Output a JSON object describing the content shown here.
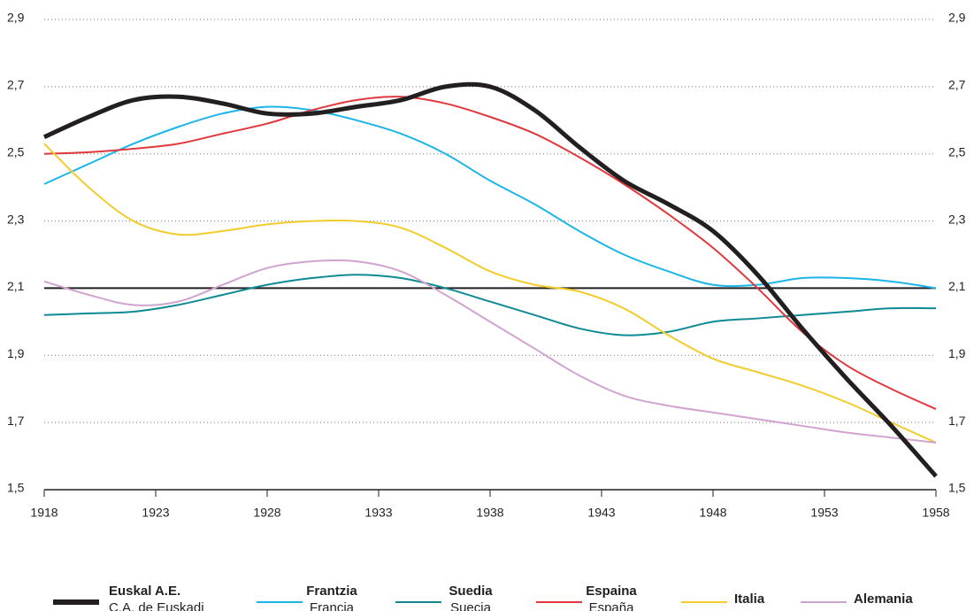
{
  "chart_data": {
    "type": "line",
    "x": [
      1918,
      1920,
      1922,
      1924,
      1926,
      1928,
      1930,
      1932,
      1934,
      1936,
      1938,
      1940,
      1942,
      1944,
      1946,
      1948,
      1950,
      1952,
      1954,
      1956,
      1958
    ],
    "xlim": [
      1918,
      1958
    ],
    "xticks": [
      1918,
      1923,
      1928,
      1933,
      1938,
      1943,
      1948,
      1953,
      1958
    ],
    "ylim": [
      1.5,
      2.9
    ],
    "yticks": [
      {
        "value": 1.5,
        "label": "1,5"
      },
      {
        "value": 1.7,
        "label": "1,7"
      },
      {
        "value": 1.9,
        "label": "1,9"
      },
      {
        "value": 2.1,
        "label": "2,1"
      },
      {
        "value": 2.3,
        "label": "2,3"
      },
      {
        "value": 2.5,
        "label": "2,5"
      },
      {
        "value": 2.7,
        "label": "2,7"
      },
      {
        "value": 2.9,
        "label": "2,9"
      }
    ],
    "grid": true,
    "hline": 2.1,
    "series": [
      {
        "name": "Euskal A.E.",
        "subname": "C.A. de Euskadi",
        "color": "#231f20",
        "values": [
          2.55,
          2.61,
          2.66,
          2.67,
          2.65,
          2.62,
          2.62,
          2.64,
          2.66,
          2.7,
          2.7,
          2.63,
          2.52,
          2.42,
          2.35,
          2.27,
          2.14,
          1.98,
          1.83,
          1.69,
          1.54
        ]
      },
      {
        "name": "Frantzia",
        "subname": "Francia",
        "color": "#1bb5e8",
        "values": [
          2.41,
          2.47,
          2.53,
          2.58,
          2.62,
          2.64,
          2.63,
          2.6,
          2.56,
          2.5,
          2.42,
          2.35,
          2.27,
          2.2,
          2.15,
          2.11,
          2.11,
          2.13,
          2.13,
          2.12,
          2.1
        ]
      },
      {
        "name": "Suedia",
        "subname": "Suecia",
        "color": "#0f8a94",
        "values": [
          2.02,
          2.025,
          2.03,
          2.05,
          2.08,
          2.11,
          2.13,
          2.14,
          2.13,
          2.1,
          2.06,
          2.02,
          1.98,
          1.96,
          1.97,
          2.0,
          2.01,
          2.02,
          2.03,
          2.04,
          2.04
        ]
      },
      {
        "name": "Espaina",
        "subname": "España",
        "color": "#e0383c",
        "values": [
          2.5,
          2.505,
          2.515,
          2.53,
          2.56,
          2.59,
          2.63,
          2.66,
          2.67,
          2.65,
          2.61,
          2.56,
          2.49,
          2.41,
          2.32,
          2.22,
          2.1,
          1.97,
          1.87,
          1.8,
          1.74
        ]
      },
      {
        "name": "Italia",
        "color": "#f2cc2c",
        "values": [
          2.53,
          2.4,
          2.3,
          2.26,
          2.27,
          2.29,
          2.3,
          2.3,
          2.28,
          2.22,
          2.15,
          2.11,
          2.09,
          2.04,
          1.96,
          1.89,
          1.85,
          1.81,
          1.76,
          1.7,
          1.64
        ]
      },
      {
        "name": "Alemania",
        "color": "#d1a3cf",
        "values": [
          2.12,
          2.08,
          2.05,
          2.06,
          2.11,
          2.16,
          2.18,
          2.18,
          2.15,
          2.08,
          2.0,
          1.92,
          1.84,
          1.78,
          1.75,
          1.73,
          1.71,
          1.69,
          1.67,
          1.655,
          1.64
        ]
      }
    ]
  }
}
